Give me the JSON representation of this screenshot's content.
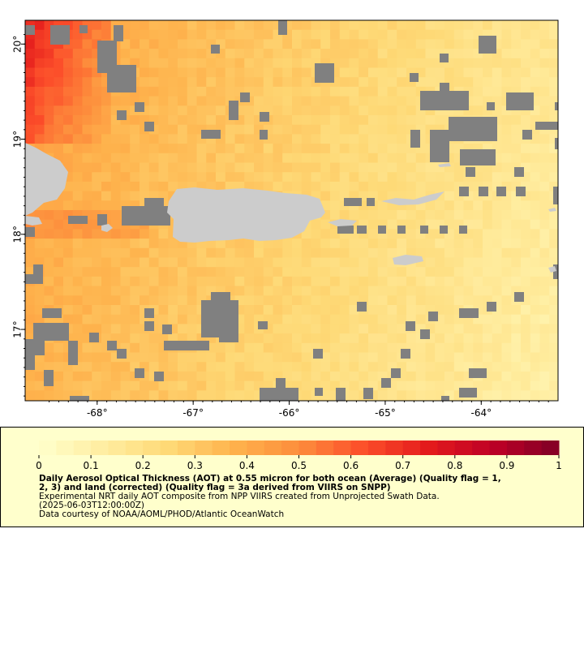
{
  "map": {
    "x_ticks": [
      "-68°",
      "-67°",
      "-66°",
      "-65°",
      "-64°"
    ],
    "y_ticks": [
      "20°",
      "19°",
      "18°",
      "17°"
    ],
    "x_tick_values": [
      -68,
      -67,
      -66,
      -65,
      -64
    ],
    "y_tick_values": [
      20,
      19,
      18,
      17
    ],
    "lon_range": [
      -68.75,
      -63.2
    ],
    "lat_range": [
      16.25,
      20.25
    ],
    "colors": {
      "land": "#cccccc",
      "nodata": "#808080",
      "frame": "#000000"
    }
  },
  "legend": {
    "ticks": [
      "0",
      "0.1",
      "0.2",
      "0.3",
      "0.4",
      "0.5",
      "0.6",
      "0.7",
      "0.8",
      "0.9",
      "1"
    ],
    "range": [
      0,
      1
    ],
    "steps": 30,
    "colormap": [
      "#ffffcc",
      "#ffeda0",
      "#fed976",
      "#feb24c",
      "#fd8d3c",
      "#fc4e2a",
      "#e31a1c",
      "#bd0026",
      "#800026"
    ],
    "title_line1": "Daily Aerosol Optical Thickness (AOT) at 0.55 micron for both ocean (Average) (Quality flag = 1,",
    "title_line2": "2, 3) and land (corrected) (Quality flag = 3a derived from VIIRS on SNPP)",
    "desc_line": "Experimental NRT daily AOT composite from NPP VIIRS created from Unprojected Swath Data.",
    "time_line": "(2025-06-03T12:00:00Z)",
    "credit_line": "Data courtesy of NOAA/AOML/PHOD/Atlantic OceanWatch"
  }
}
